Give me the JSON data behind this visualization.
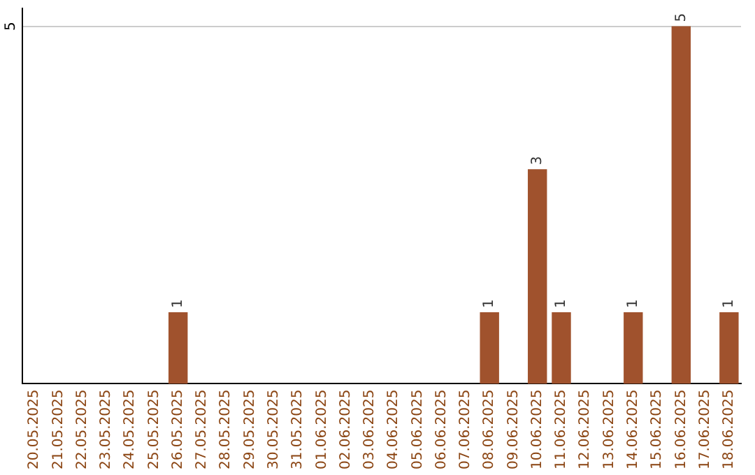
{
  "chart_data": {
    "type": "bar",
    "categories": [
      "20.05.2025",
      "21.05.2025",
      "22.05.2025",
      "23.05.2025",
      "24.05.2025",
      "25.05.2025",
      "26.05.2025",
      "27.05.2025",
      "28.05.2025",
      "29.05.2025",
      "30.05.2025",
      "31.05.2025",
      "01.06.2025",
      "02.06.2025",
      "03.06.2025",
      "04.06.2025",
      "05.06.2025",
      "06.06.2025",
      "07.06.2025",
      "08.06.2025",
      "09.06.2025",
      "10.06.2025",
      "11.06.2025",
      "12.06.2025",
      "13.06.2025",
      "14.06.2025",
      "15.06.2025",
      "16.06.2025",
      "17.06.2025",
      "18.06.2025"
    ],
    "values": [
      0,
      0,
      0,
      0,
      0,
      0,
      1,
      0,
      0,
      0,
      0,
      0,
      0,
      0,
      0,
      0,
      0,
      0,
      0,
      1,
      0,
      3,
      1,
      0,
      0,
      1,
      0,
      5,
      0,
      1
    ],
    "value_labels": [
      null,
      null,
      null,
      null,
      null,
      null,
      "1",
      null,
      null,
      null,
      null,
      null,
      null,
      null,
      null,
      null,
      null,
      null,
      null,
      "1",
      null,
      "3",
      "1",
      null,
      null,
      "1",
      null,
      "5",
      null,
      "1"
    ],
    "color": "#a0522d",
    "ylim": [
      0,
      5.25
    ],
    "yticks": [
      5
    ],
    "grid": "y"
  }
}
